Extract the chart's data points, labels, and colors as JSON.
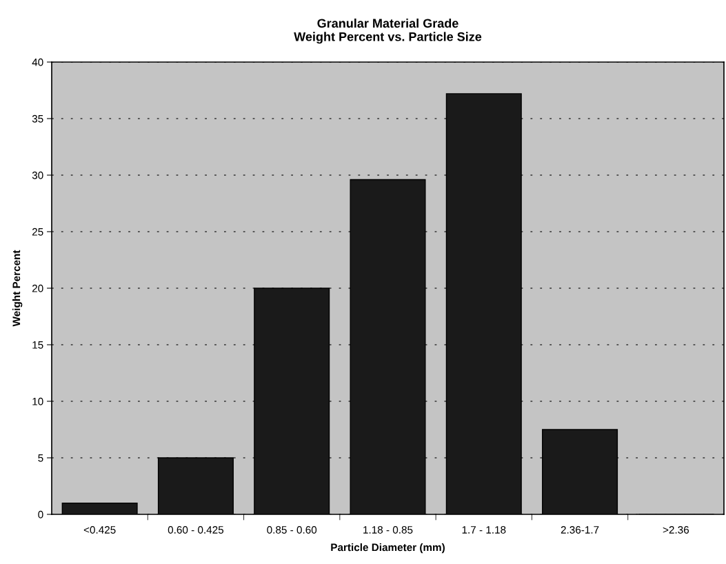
{
  "chart_data": {
    "type": "bar",
    "title": "Granular Material Grade\nWeight Percent vs. Particle Size",
    "xlabel": "Particle Diameter (mm)",
    "ylabel": "Weight Percent",
    "categories": [
      "<0.425",
      "0.60 - 0.425",
      "0.85 - 0.60",
      "1.18 - 0.85",
      "1.7 - 1.18",
      "2.36-1.7",
      ">2.36"
    ],
    "values": [
      1.0,
      5.0,
      20.0,
      29.6,
      37.2,
      7.5,
      0
    ],
    "color": "#1a1a1a",
    "ylim": [
      0,
      40
    ],
    "yticks": [
      0,
      5,
      10,
      15,
      20,
      25,
      30,
      35,
      40
    ],
    "grid": "y",
    "line_style": "dotted"
  }
}
